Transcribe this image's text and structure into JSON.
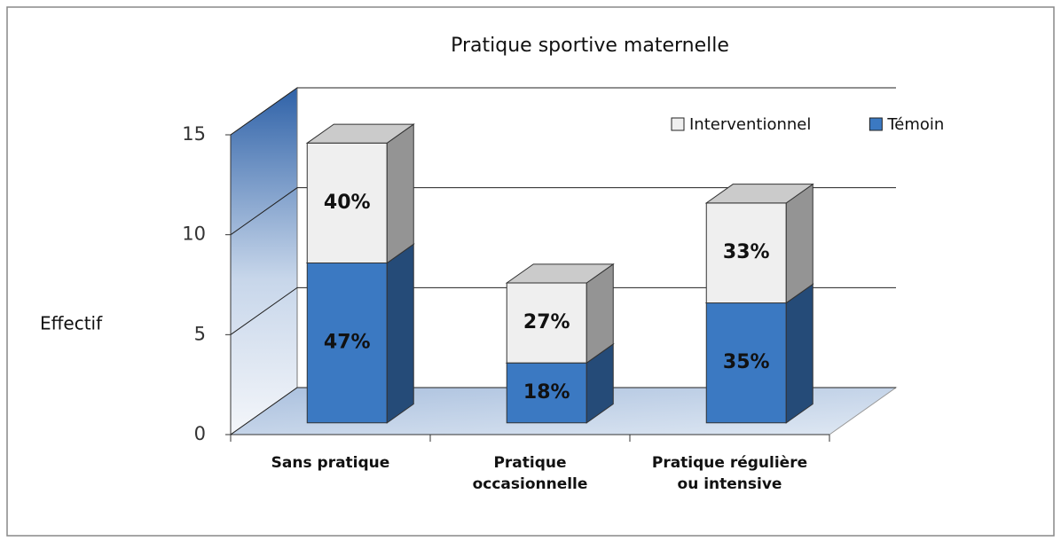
{
  "chart_data": {
    "type": "bar3d_stacked",
    "title": "Pratique sportive maternelle",
    "y_label": "Effectif",
    "categories": [
      "Sans pratique",
      "Pratique occasionnelle",
      "Pratique régulière ou intensive"
    ],
    "series": [
      {
        "name": "Interventionnel",
        "color": "#efefef",
        "values": [
          6,
          4,
          5
        ],
        "percent_labels": [
          "40%",
          "27%",
          "33%"
        ]
      },
      {
        "name": "Témoin",
        "color": "#3b79c2",
        "values": [
          8,
          3,
          6
        ],
        "percent_labels": [
          "47%",
          "18%",
          "35%"
        ]
      }
    ],
    "ylim": [
      0,
      15
    ],
    "yticks": [
      0,
      5,
      10,
      15
    ],
    "grid": true,
    "legend": "top-right"
  }
}
